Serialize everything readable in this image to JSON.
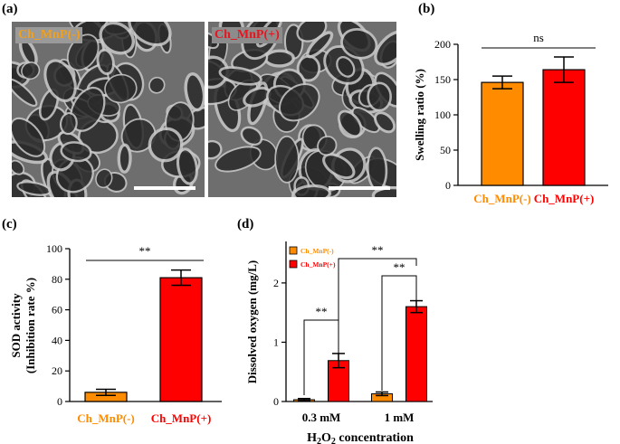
{
  "panels": {
    "a": {
      "label": "(a)",
      "images": [
        {
          "tag": "Ch_MnP(-)",
          "tag_color": "#F0A020",
          "tag_bg": "#9A9A9A"
        },
        {
          "tag": "Ch_MnP(+)",
          "tag_color": "#E8141E",
          "tag_bg": "#8C8C8C"
        }
      ]
    },
    "b": {
      "label": "(b)"
    },
    "c": {
      "label": "(c)"
    },
    "d": {
      "label": "(d)"
    }
  },
  "colors": {
    "orange": "#FF8C00",
    "red": "#FF0000"
  },
  "chart_data": [
    {
      "id": "b",
      "type": "bar",
      "categories": [
        "Ch_MnP(-)",
        "Ch_MnP(+)"
      ],
      "category_colors": [
        "#FF8C00",
        "#FF0000"
      ],
      "values": [
        146,
        164
      ],
      "errors": [
        9,
        18
      ],
      "ylabel": "Swelling ratio (%)",
      "ylim": [
        0,
        200
      ],
      "yticks": [
        "0",
        "50",
        "100",
        "150",
        "200"
      ],
      "significance": [
        {
          "from": 0,
          "to": 1,
          "label": "ns"
        }
      ]
    },
    {
      "id": "c",
      "type": "bar",
      "categories": [
        "Ch_MnP(-)",
        "Ch_MnP(+)"
      ],
      "category_colors": [
        "#FF8C00",
        "#FF0000"
      ],
      "values": [
        6,
        81
      ],
      "errors": [
        2,
        5
      ],
      "ylabel_lines": [
        "SOD activity",
        "(Inhibition rate %)"
      ],
      "ylim": [
        0,
        100
      ],
      "yticks": [
        "0",
        "20",
        "40",
        "60",
        "80",
        "100"
      ],
      "significance": [
        {
          "from": 0,
          "to": 1,
          "label": "**"
        }
      ]
    },
    {
      "id": "d",
      "type": "bar",
      "categories": [
        "0.3 mM",
        "1 mM"
      ],
      "series": [
        {
          "name": "Ch_MnP(-)",
          "color": "#FF8C00",
          "values": [
            0.03,
            0.13
          ],
          "errors": [
            0.02,
            0.03
          ]
        },
        {
          "name": "Ch_MnP(+)",
          "color": "#FF0000",
          "values": [
            0.69,
            1.6
          ],
          "errors": [
            0.12,
            0.1
          ]
        }
      ],
      "ylabel": "Dissolved oxygen (mg/L)",
      "xlabel": "H2O2 concentration",
      "ylim": [
        0,
        2.7
      ],
      "yticks": [
        "0",
        "1",
        "2"
      ],
      "legend": "top-left",
      "significance": [
        {
          "label": "**",
          "pair": "0.3 mM"
        },
        {
          "label": "**",
          "pair": "1 mM"
        },
        {
          "label": "**",
          "pair": "across"
        }
      ]
    }
  ]
}
